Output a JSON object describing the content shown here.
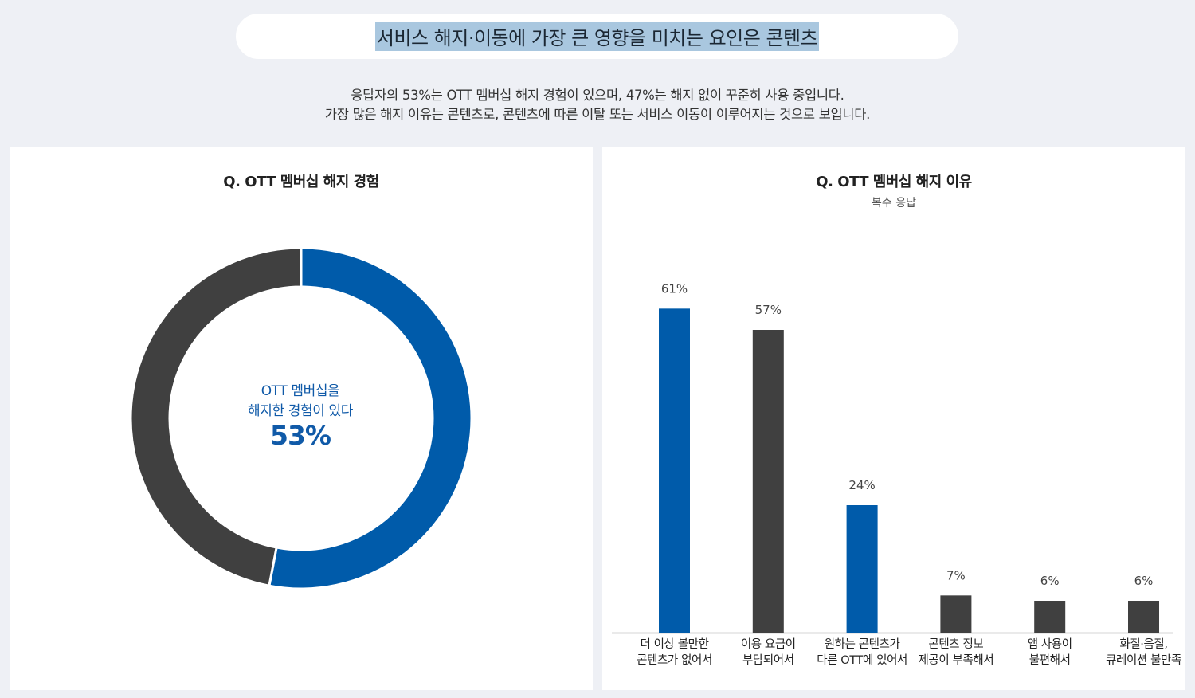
{
  "header": {
    "title": "서비스 해지·이동에 가장 큰 영향을 미치는 요인은 콘텐츠",
    "description": [
      "응답자의 53%는 OTT 멤버십 해지 경험이 있으며, 47%는 해지 없이 꾸준히 사용 중입니다.",
      "가장 많은 해지 이유는 콘텐츠로, 콘텐츠에 따른 이탈 또는 서비스 이동이 이루어지는 것으로 보입니다."
    ]
  },
  "colors": {
    "blue": "#005baa",
    "dark": "#404040",
    "highlight": "#a9c7df"
  },
  "chart_data": [
    {
      "type": "pie",
      "title": "Q. OTT 멤버십 해지 경험",
      "center_label": [
        "OTT 멤버십을",
        "해지한 경험이 있다"
      ],
      "center_value": "53%",
      "slices": [
        {
          "label": "OTT 멤버십을 해지한 경험이 있다",
          "value": 53,
          "color": "#005baa"
        },
        {
          "label": "",
          "value": 47,
          "color": "#404040"
        }
      ]
    },
    {
      "type": "bar",
      "title": "Q. OTT 멤버십 해지 이유",
      "subtitle": "복수 응답",
      "categories": [
        [
          "더 이상 볼만한",
          "콘텐츠가 없어서"
        ],
        [
          "이용 요금이",
          "부담되어서"
        ],
        [
          "원하는 콘텐츠가",
          "다른 OTT에 있어서"
        ],
        [
          "콘텐츠 정보",
          "제공이 부족해서"
        ],
        [
          "앱 사용이",
          "불편해서"
        ],
        [
          "화질·음질,",
          "큐레이션 불만족"
        ]
      ],
      "values": [
        61,
        57,
        24,
        7,
        6,
        6
      ],
      "value_labels": [
        "61%",
        "57%",
        "24%",
        "7%",
        "6%",
        "6%"
      ],
      "colors": [
        "#005baa",
        "#404040",
        "#005baa",
        "#404040",
        "#404040",
        "#404040"
      ],
      "ylim": [
        0,
        66
      ]
    }
  ]
}
